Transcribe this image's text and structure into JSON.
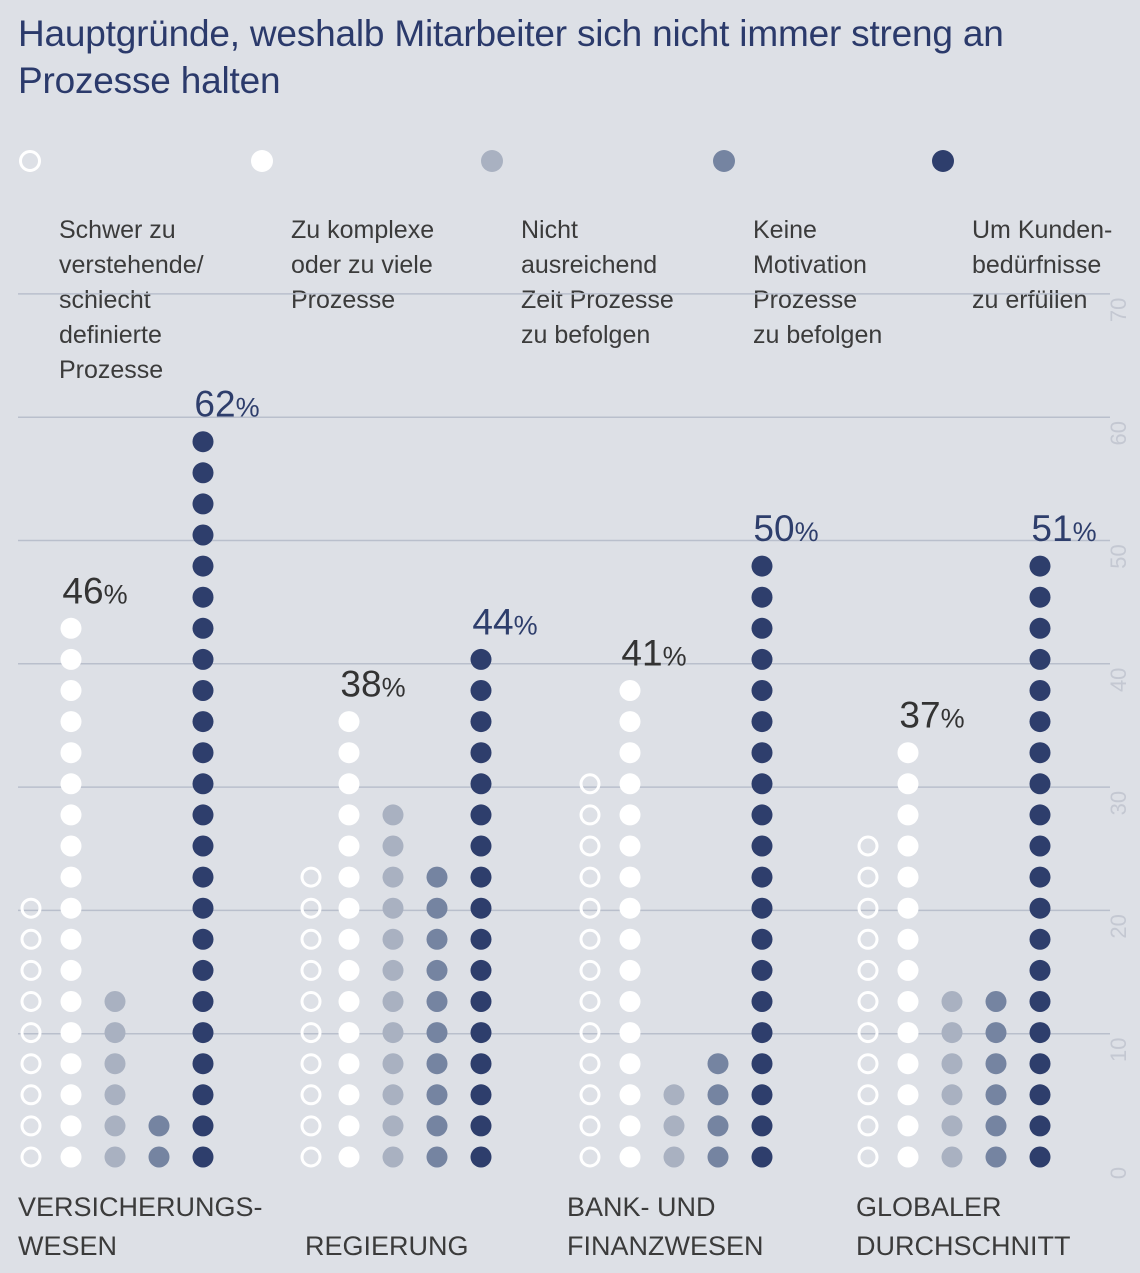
{
  "title": "Hauptgründe, weshalb Mitarbeiter sich nicht immer streng an Prozesse halten",
  "legend": [
    {
      "label": "Schwer zu\nverstehende/\nschlecht\ndefinierte\nProzesse",
      "marker": "outline-white"
    },
    {
      "label": "Zu komplexe\noder zu viele\nProzesse",
      "marker": "white"
    },
    {
      "label": "Nicht\nausreichend\nZeit Prozesse\nzu befolgen",
      "marker": "light-gray"
    },
    {
      "label": "Keine\nMotivation\nProzesse\nzu befolgen",
      "marker": "gray-blue"
    },
    {
      "label": "Um Kunden-\nbedürfnisse\nzu erfüllen",
      "marker": "navy"
    }
  ],
  "categories": [
    {
      "label": "VERSICHERUNGS-\nWESEN"
    },
    {
      "label": "REGIERUNG"
    },
    {
      "label": "BANK- UND\nFINANZWESEN"
    },
    {
      "label": "GLOBALER\nDURCHSCHNITT"
    }
  ],
  "chart_data": {
    "type": "bar",
    "title": "Hauptgründe, weshalb Mitarbeiter sich nicht immer streng an Prozesse halten",
    "categories": [
      "VERSICHERUNGS-WESEN",
      "REGIERUNG",
      "BANK- UND FINANZWESEN",
      "GLOBALER DURCHSCHNITT"
    ],
    "series": [
      {
        "name": "Schwer zu verstehende/ schlecht definierte Prozesse",
        "values": [
          23,
          25,
          33,
          28
        ],
        "color": "#ffffff",
        "style": "outline"
      },
      {
        "name": "Zu komplexe oder zu viele Prozesse",
        "values": [
          46,
          38,
          41,
          37
        ],
        "color": "#ffffff",
        "style": "filled"
      },
      {
        "name": "Nicht ausreichend Zeit Prozesse zu befolgen",
        "values": [
          15,
          30,
          9,
          15
        ],
        "color": "#a9b1c1",
        "style": "filled"
      },
      {
        "name": "Keine Motivation Prozesse zu befolgen",
        "values": [
          7,
          25,
          12,
          15
        ],
        "color": "#7584a1",
        "style": "filled"
      },
      {
        "name": "Um Kundenbedürfnisse zu erfüllen",
        "values": [
          62,
          44,
          50,
          51
        ],
        "color": "#2e3e6c",
        "style": "filled"
      }
    ],
    "value_labels": [
      {
        "category": 0,
        "series": 1,
        "text": "46"
      },
      {
        "category": 0,
        "series": 4,
        "text": "62"
      },
      {
        "category": 1,
        "series": 1,
        "text": "38"
      },
      {
        "category": 1,
        "series": 4,
        "text": "44"
      },
      {
        "category": 2,
        "series": 1,
        "text": "41"
      },
      {
        "category": 2,
        "series": 4,
        "text": "50"
      },
      {
        "category": 3,
        "series": 1,
        "text": "37"
      },
      {
        "category": 3,
        "series": 4,
        "text": "51"
      }
    ],
    "value_label_unit": "%",
    "yticks": [
      "0",
      "10",
      "20",
      "30",
      "40",
      "50",
      "60",
      "70"
    ],
    "ylim": [
      0,
      70
    ],
    "ylabel": "",
    "xlabel": "",
    "grid": true,
    "axis_side": "right",
    "dot_step": 2.5
  }
}
